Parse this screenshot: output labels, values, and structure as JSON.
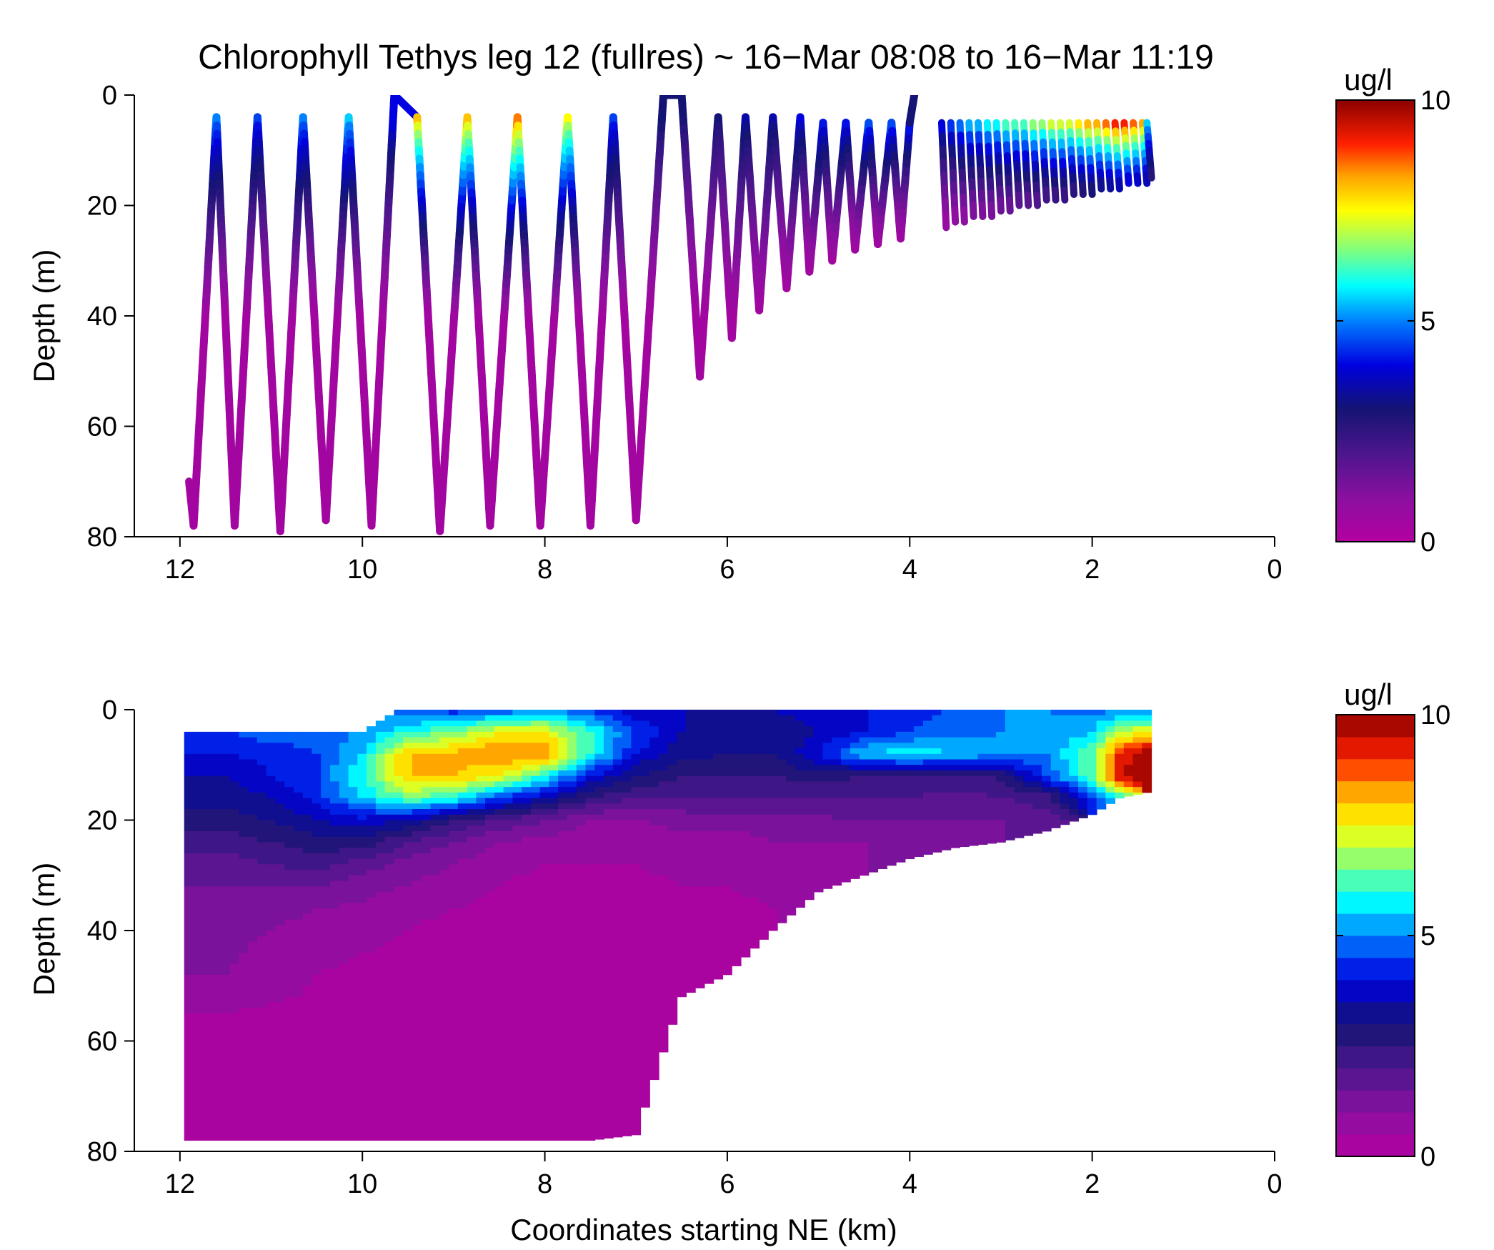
{
  "figure": {
    "title": "Chlorophyll Tethys leg 12 (fullres) ~ 16−Mar 08:08 to 16−Mar 11:19",
    "xlabel": "Coordinates starting NE (km)"
  },
  "chart_data": [
    {
      "type": "scatter",
      "panel": "top",
      "title": "Chlorophyll Tethys leg 12 (fullres) ~ 16−Mar 08:08 to 16−Mar 11:19",
      "xlabel": "",
      "ylabel": "Depth (m)",
      "xlim": [
        0,
        12.5
      ],
      "x_reversed": true,
      "ylim": [
        0,
        80
      ],
      "y_reversed": true,
      "xticks": [
        "12",
        "10",
        "8",
        "6",
        "4",
        "2",
        "0"
      ],
      "yticks": [
        "0",
        "20",
        "40",
        "60",
        "80"
      ],
      "colorbar": {
        "label": "ug/l",
        "min": 0,
        "max": 10,
        "ticks": [
          "10",
          "5",
          "0"
        ],
        "colormap": "jet-with-magenta-low"
      },
      "yo_path": {
        "x_km": [
          11.9,
          11.85,
          11.6,
          11.4,
          11.15,
          10.9,
          10.65,
          10.4,
          10.15,
          9.9,
          9.65,
          9.4,
          9.15,
          8.85,
          8.6,
          8.3,
          8.05,
          7.75,
          7.5,
          7.25,
          7.0,
          6.7,
          6.5,
          6.3,
          6.1,
          5.95,
          5.8,
          5.65,
          5.5,
          5.35,
          5.2,
          5.1,
          4.95,
          4.85,
          4.7,
          4.6,
          4.45,
          4.35,
          4.2,
          4.1,
          4.0,
          3.95
        ],
        "depth_m": [
          70,
          78,
          4,
          78,
          4,
          79,
          4,
          77,
          4,
          78,
          0,
          4,
          79,
          4,
          78,
          4,
          78,
          4,
          78,
          4,
          77,
          0,
          0,
          51,
          4,
          44,
          4,
          39,
          4,
          35,
          4,
          32,
          5,
          30,
          5,
          28,
          5,
          27,
          5,
          26,
          5,
          0
        ],
        "surface_chl_ugL": [
          null,
          null,
          5,
          null,
          4.5,
          null,
          5,
          null,
          5.5,
          null,
          4,
          8,
          null,
          8,
          null,
          8.5,
          null,
          7.5,
          null,
          4.5,
          null,
          3,
          3,
          null,
          3,
          null,
          3.5,
          null,
          3.5,
          null,
          4,
          null,
          4.5,
          null,
          4.5,
          null,
          5,
          null,
          5,
          null,
          4.5,
          3
        ]
      },
      "shallow_yos": {
        "x_km": [
          3.65,
          3.55,
          3.45,
          3.35,
          3.25,
          3.15,
          3.05,
          2.95,
          2.85,
          2.75,
          2.65,
          2.55,
          2.45,
          2.35,
          2.25,
          2.15,
          2.05,
          1.95,
          1.85,
          1.75,
          1.65,
          1.55,
          1.45,
          1.4
        ],
        "min_depth_m": 5,
        "max_depth_m": [
          24,
          23,
          23,
          22,
          22,
          22,
          21,
          21,
          20,
          20,
          20,
          19,
          19,
          19,
          18,
          18,
          18,
          17,
          17,
          17,
          16,
          16,
          16,
          15
        ],
        "surface_chl_ugL": [
          4.5,
          5,
          5.5,
          6,
          6,
          6.5,
          6.5,
          7,
          7,
          7,
          7.5,
          7.5,
          8,
          8,
          8,
          8.5,
          9,
          9,
          9.5,
          10,
          10,
          9.5,
          9,
          6
        ]
      }
    },
    {
      "type": "heatmap",
      "panel": "bottom",
      "title": "",
      "xlabel": "Coordinates starting NE (km)",
      "ylabel": "Depth (m)",
      "xlim": [
        0,
        12.5
      ],
      "x_reversed": true,
      "ylim": [
        0,
        80
      ],
      "y_reversed": true,
      "xticks": [
        "12",
        "10",
        "8",
        "6",
        "4",
        "2",
        "0"
      ],
      "yticks": [
        "0",
        "20",
        "40",
        "60",
        "80"
      ],
      "colorbar": {
        "label": "ug/l",
        "min": 0,
        "max": 10,
        "ticks": [
          "10",
          "5",
          "0"
        ],
        "levels": 20
      },
      "x_km": [
        11.9,
        11.5,
        11.0,
        10.5,
        10.0,
        9.5,
        9.0,
        8.5,
        8.0,
        7.5,
        7.0,
        6.5,
        6.0,
        5.5,
        5.0,
        4.5,
        4.0,
        3.5,
        3.0,
        2.5,
        2.0,
        1.7,
        1.4
      ],
      "depth_m": [
        0,
        4,
        8,
        12,
        16,
        20,
        24,
        28,
        32,
        36,
        40,
        48,
        56,
        64,
        72,
        78
      ],
      "bottom_depth_m": [
        78,
        78,
        78,
        78,
        78,
        78,
        78,
        78,
        78,
        78,
        77,
        52,
        48,
        40,
        33,
        30,
        27,
        25,
        24,
        22,
        19,
        16,
        15
      ],
      "top_depth_m": [
        4,
        4,
        4,
        4,
        4,
        0,
        0,
        0,
        0,
        0,
        0,
        0,
        0,
        0,
        0,
        0,
        0,
        0,
        0,
        0,
        0,
        0,
        0
      ],
      "chl_ugL": [
        [
          4.5,
          4.5,
          4.8,
          4.8,
          5.0,
          4.5,
          4.2,
          4.5,
          5.0,
          4.5,
          3.5,
          3.5,
          3.0,
          3.5,
          3.8,
          4.0,
          4.2,
          4.6,
          5.0,
          5.0,
          4.8,
          4.8,
          4.8
        ],
        [
          4.5,
          4.5,
          4.8,
          4.8,
          5.0,
          6.0,
          6.5,
          7.5,
          7.5,
          6.0,
          4.5,
          3.5,
          3.0,
          3.0,
          3.5,
          4.0,
          4.5,
          4.8,
          5.0,
          5.0,
          5.5,
          7.0,
          7.5
        ],
        [
          4.0,
          4.0,
          4.2,
          4.5,
          5.5,
          8.0,
          8.2,
          8.5,
          8.5,
          6.0,
          4.0,
          3.2,
          3.0,
          3.0,
          4.0,
          5.5,
          5.8,
          5.5,
          5.2,
          5.0,
          6.5,
          9.0,
          10.0
        ],
        [
          3.5,
          3.5,
          4.0,
          4.5,
          6.0,
          8.0,
          8.0,
          7.5,
          6.0,
          4.0,
          3.0,
          2.5,
          2.5,
          2.5,
          2.8,
          2.5,
          2.5,
          2.4,
          2.6,
          4.5,
          6.5,
          9.5,
          10.0
        ],
        [
          3.2,
          3.2,
          3.5,
          4.2,
          5.5,
          6.5,
          6.0,
          4.5,
          3.5,
          2.5,
          2.0,
          2.0,
          2.0,
          2.0,
          2.0,
          2.0,
          2.0,
          1.8,
          2.0,
          2.2,
          4.5,
          6.0,
          null
        ],
        [
          2.8,
          2.8,
          3.0,
          3.5,
          3.8,
          3.5,
          2.5,
          2.0,
          1.5,
          1.0,
          1.0,
          1.2,
          1.2,
          1.2,
          1.4,
          1.5,
          1.5,
          1.5,
          1.5,
          1.8,
          null,
          null,
          null
        ],
        [
          2.2,
          2.2,
          2.5,
          2.8,
          2.8,
          2.0,
          1.5,
          1.0,
          0.8,
          0.6,
          0.6,
          0.8,
          0.8,
          1.0,
          1.0,
          1.0,
          1.0,
          1.0,
          null,
          null,
          null,
          null,
          null
        ],
        [
          1.8,
          1.8,
          2.0,
          2.2,
          1.8,
          1.3,
          1.0,
          0.6,
          0.5,
          0.5,
          0.5,
          0.6,
          0.6,
          0.8,
          0.8,
          1.0,
          null,
          null,
          null,
          null,
          null,
          null,
          null
        ],
        [
          1.5,
          1.5,
          1.5,
          1.5,
          1.2,
          1.0,
          0.7,
          0.5,
          0.4,
          0.4,
          0.4,
          0.5,
          0.5,
          0.6,
          null,
          null,
          null,
          null,
          null,
          null,
          null,
          null,
          null
        ],
        [
          1.3,
          1.3,
          1.2,
          1.0,
          0.9,
          0.6,
          0.5,
          0.4,
          0.4,
          0.4,
          0.4,
          0.4,
          0.4,
          0.5,
          null,
          null,
          null,
          null,
          null,
          null,
          null,
          null,
          null
        ],
        [
          1.2,
          1.2,
          1.0,
          0.8,
          0.6,
          0.5,
          0.4,
          0.4,
          0.4,
          0.4,
          0.4,
          0.4,
          0.4,
          null,
          null,
          null,
          null,
          null,
          null,
          null,
          null,
          null,
          null
        ],
        [
          1.0,
          1.0,
          0.7,
          0.5,
          0.4,
          0.4,
          0.4,
          0.4,
          0.4,
          0.4,
          0.4,
          0.4,
          null,
          null,
          null,
          null,
          null,
          null,
          null,
          null,
          null,
          null,
          null
        ],
        [
          0.4,
          0.4,
          0.4,
          0.4,
          0.4,
          0.4,
          0.4,
          0.4,
          0.4,
          0.4,
          0.4,
          null,
          null,
          null,
          null,
          null,
          null,
          null,
          null,
          null,
          null,
          null,
          null
        ],
        [
          0.4,
          0.4,
          0.4,
          0.4,
          0.4,
          0.4,
          0.4,
          0.4,
          0.4,
          0.4,
          0.4,
          null,
          null,
          null,
          null,
          null,
          null,
          null,
          null,
          null,
          null,
          null,
          null
        ],
        [
          0.4,
          0.4,
          0.4,
          0.4,
          0.4,
          0.4,
          0.4,
          0.4,
          0.4,
          0.4,
          0.4,
          null,
          null,
          null,
          null,
          null,
          null,
          null,
          null,
          null,
          null,
          null,
          null
        ],
        [
          0.4,
          0.4,
          0.4,
          0.4,
          0.4,
          0.4,
          0.4,
          0.4,
          0.4,
          0.4,
          0.4,
          null,
          null,
          null,
          null,
          null,
          null,
          null,
          null,
          null,
          null,
          null,
          null
        ]
      ]
    }
  ]
}
